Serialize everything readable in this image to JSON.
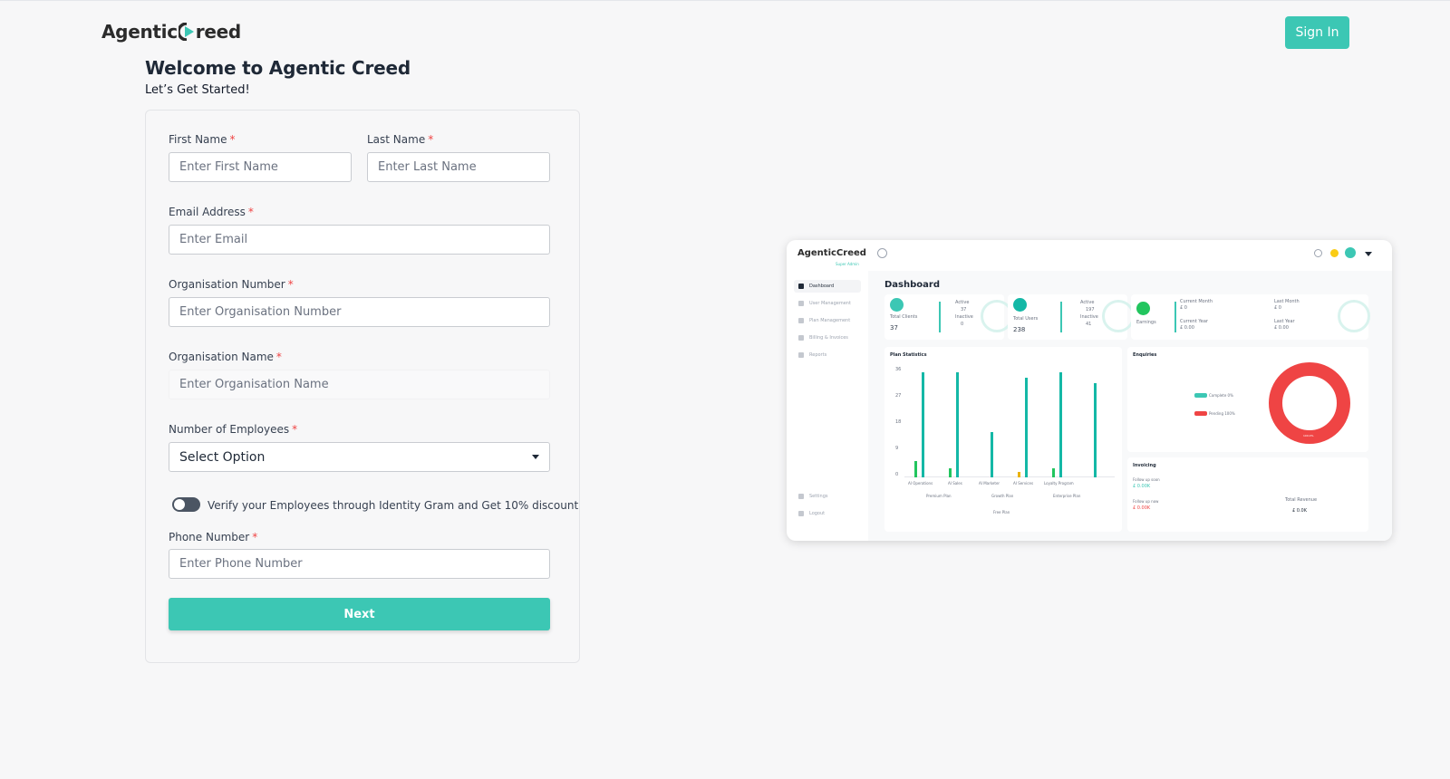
{
  "brand": {
    "name_left": "Agentic",
    "name_right": "reed",
    "accent": "#3cc7b4",
    "required_color": "#ef4444"
  },
  "header": {
    "signin_label": "Sign In"
  },
  "intro": {
    "title": "Welcome to Agentic Creed",
    "subtitle": "Let’s Get Started!"
  },
  "form": {
    "required_marker": "*",
    "first_name": {
      "label": "First Name",
      "placeholder": "Enter First Name",
      "value": ""
    },
    "last_name": {
      "label": "Last Name",
      "placeholder": "Enter Last Name",
      "value": ""
    },
    "email": {
      "label": "Email Address",
      "placeholder": "Enter Email",
      "value": ""
    },
    "org_number": {
      "label": "Organisation Number",
      "placeholder": "Enter Organisation Number",
      "value": ""
    },
    "org_name": {
      "label": "Organisation Name",
      "placeholder": "Enter Organisation Name",
      "value": ""
    },
    "employees": {
      "label": "Number of Employees",
      "selected": "Select Option"
    },
    "verify_toggle": {
      "label": "Verify your Employees through Identity Gram and Get 10% discount",
      "on": false
    },
    "phone": {
      "label": "Phone Number",
      "placeholder": "Enter Phone Number",
      "value": ""
    },
    "next_label": "Next"
  },
  "preview": {
    "logo": "AgenticCreed",
    "logo_sub": "Super Admin",
    "nav": [
      "Dashboard",
      "User Management",
      "Plan Management",
      "Billing & Invoices",
      "Reports"
    ],
    "nav_bottom": [
      "Settings",
      "Logout"
    ],
    "title": "Dashboard",
    "stats": {
      "clients": {
        "label": "Total Clients",
        "value": "37",
        "active": "Active",
        "active_val": "37",
        "inactive": "Inactive",
        "inactive_val": "0"
      },
      "users": {
        "label": "Total Users",
        "value": "238",
        "active": "Active",
        "active_val": "197",
        "inactive": "Inactive",
        "inactive_val": "41"
      },
      "earnings": {
        "label": "Earnings",
        "current_month": "Current Month",
        "current_month_val": "£ 0",
        "last_month": "Last Month",
        "last_month_val": "£ 0",
        "current_year": "Current Year",
        "current_year_val": "£ 0.00",
        "last_year": "Last Year",
        "last_year_val": "£ 0.00"
      }
    },
    "plan_stats": {
      "title": "Plan Statistics",
      "yticks": [
        "36",
        "27",
        "18",
        "9",
        "0"
      ],
      "categories": [
        "AI Operations",
        "AI Sales",
        "AI Marketer",
        "AI Services",
        "Loyalty Program"
      ],
      "legend": [
        "Premium Plan",
        "Growth Plan",
        "Enterprise Plan",
        "Free Plan"
      ]
    },
    "enquiries": {
      "title": "Enquiries",
      "complete": "Complete 0%",
      "pending": "Pending 100%",
      "donut_label": "100.0%"
    },
    "invoicing": {
      "title": "Invoicing",
      "follow_soon": "Follow up soon",
      "follow_soon_val": "£ 0.00K",
      "follow_now": "Follow up now",
      "follow_now_val": "£ 0.00K",
      "total_revenue": "Total Revenue",
      "total_revenue_val": "£ 0.0K"
    }
  }
}
